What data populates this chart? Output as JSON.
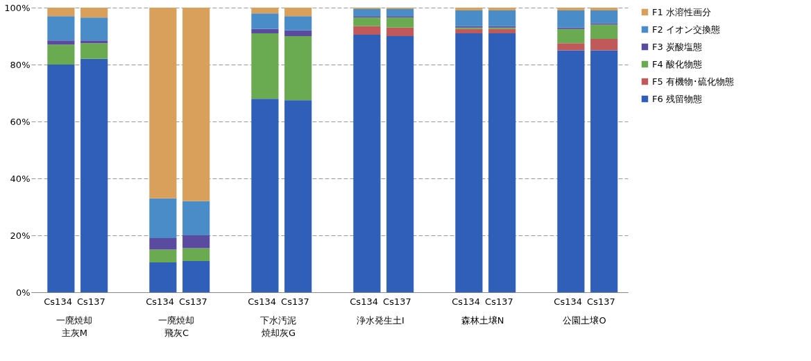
{
  "chart_data": {
    "type": "bar",
    "stacked": true,
    "categories": [
      "Cs134",
      "Cs137",
      "Cs134",
      "Cs137",
      "Cs134",
      "Cs137",
      "Cs134",
      "Cs137",
      "Cs134",
      "Cs137",
      "Cs134",
      "Cs137"
    ],
    "annotations": [
      "一廃焼却主灰M",
      "一廃焼却飛灰C",
      "下水汚泥焼却灰G",
      "浄水発生土I",
      "森林土壌N",
      "公園土壌O"
    ],
    "series": [
      {
        "name": "F6 残留物態",
        "color": "#2f5fb8",
        "values": [
          80,
          82,
          10.5,
          11,
          68,
          67.5,
          90.5,
          90,
          91,
          91,
          85,
          85
        ]
      },
      {
        "name": "F5 有機物･硫化物態",
        "color": "#c05a5a",
        "values": [
          0,
          0,
          0,
          0,
          0,
          0,
          3,
          3,
          1.5,
          1.5,
          2.5,
          4
        ]
      },
      {
        "name": "F4 酸化物態",
        "color": "#6aaa50",
        "values": [
          7,
          5.5,
          4.5,
          4.5,
          23,
          22.5,
          3,
          3.5,
          0.5,
          0.5,
          5,
          5
        ]
      },
      {
        "name": "F3 炭酸塩態",
        "color": "#5a4aa0",
        "values": [
          1.5,
          1,
          4,
          4.5,
          1.5,
          2,
          0.5,
          0.5,
          0.5,
          0.5,
          0.5,
          0.5
        ]
      },
      {
        "name": "F2 イオン交換態",
        "color": "#4a8cc8",
        "values": [
          8.5,
          8,
          14,
          12,
          5.5,
          5,
          2.5,
          2.5,
          5.5,
          5.5,
          6,
          4.5
        ]
      },
      {
        "name": "F1 水溶性画分",
        "color": "#d9a05b",
        "values": [
          3,
          3.5,
          67,
          68,
          2,
          3,
          0.5,
          0.5,
          1,
          1,
          1,
          1
        ]
      }
    ],
    "ylim": [
      0,
      100
    ],
    "yticks": [
      {
        "value": 0,
        "label": "0%"
      },
      {
        "value": 20,
        "label": "20%"
      },
      {
        "value": 40,
        "label": "40%"
      },
      {
        "value": 60,
        "label": "60%"
      },
      {
        "value": 80,
        "label": "80%"
      },
      {
        "value": 100,
        "label": "100%"
      }
    ],
    "grid": "y",
    "legend": "right"
  }
}
